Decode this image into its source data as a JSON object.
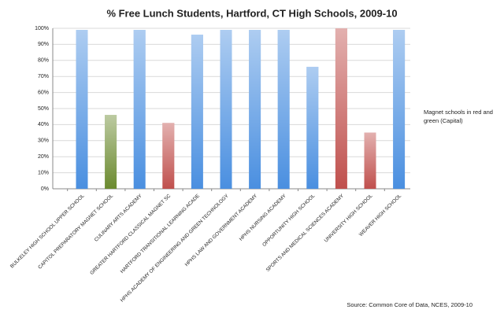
{
  "chart_data": {
    "type": "bar",
    "title": "% Free Lunch Students, Hartford, CT High Schools, 2009-10",
    "categories": [
      "BULKELEY HIGH SCHOOL UPPER SCHOOL",
      "CAPITOL PREPARATORY MAGNET SCHOOL",
      "CULINARY ARTS ACADEMY",
      "GREATER HARTFORD CLASSICAL MAGNET SC",
      "HARTFORD TRANSITIONAL LEARNING ACADE",
      "HPHS ACADEMY OF ENGINEERING AND GREEN TECHNOLOGY",
      "HPHS LAW AND GOVERNMENT ACADEMY",
      "HPHS NURSING ACADEMY",
      "OPPORTUNITY HIGH SCHOOL",
      "SPORTS AND MEDICAL SCIENCES ACADEMY",
      "UNIVERSITY HIGH SCHOOL",
      "WEAVER HIGH SCHOOL"
    ],
    "values": [
      99,
      46,
      99,
      41,
      96,
      99,
      99,
      99,
      76,
      100,
      35,
      99
    ],
    "colors": [
      "#4a8fe0",
      "#6b8a2f",
      "#4a8fe0",
      "#c0504d",
      "#4a8fe0",
      "#4a8fe0",
      "#4a8fe0",
      "#4a8fe0",
      "#4a8fe0",
      "#c0504d",
      "#c0504d",
      "#4a8fe0"
    ],
    "ylim": [
      0,
      100
    ],
    "yticks": [
      {
        "value": 0,
        "label": "0%"
      },
      {
        "value": 10,
        "label": "10%"
      },
      {
        "value": 20,
        "label": "20%"
      },
      {
        "value": 30,
        "label": "30%"
      },
      {
        "value": 40,
        "label": "40%"
      },
      {
        "value": 50,
        "label": "50%"
      },
      {
        "value": 60,
        "label": "60%"
      },
      {
        "value": 70,
        "label": "70%"
      },
      {
        "value": 80,
        "label": "80%"
      },
      {
        "value": 90,
        "label": "90%"
      },
      {
        "value": 100,
        "label": "100%"
      }
    ],
    "grid": true,
    "annotation": "Magnet schools in red and green (Capital)",
    "source": "Source: Common Core of Data, NCES, 2009-10"
  }
}
